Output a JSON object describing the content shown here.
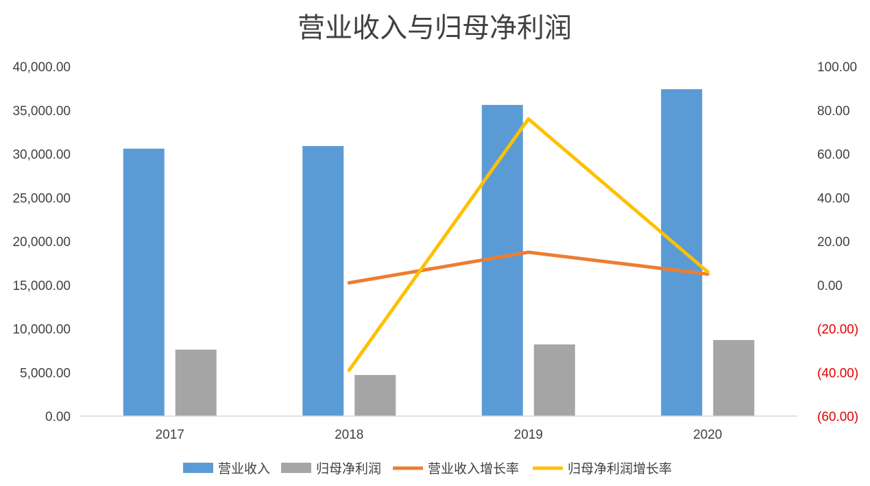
{
  "chart_data": {
    "type": "bar",
    "title": "营业收入与归母净利润",
    "categories": [
      "2017",
      "2018",
      "2019",
      "2020"
    ],
    "series": [
      {
        "name": "营业收入",
        "type": "bar",
        "axis": "left",
        "color": "#5b9bd5",
        "values": [
          30600,
          30900,
          35600,
          37400
        ]
      },
      {
        "name": "归母净利润",
        "type": "bar",
        "axis": "left",
        "color": "#a5a5a5",
        "values": [
          7600,
          4700,
          8200,
          8700
        ]
      },
      {
        "name": "营业收入增长率",
        "type": "line",
        "axis": "right",
        "color": "#ed7d31",
        "values": [
          null,
          1.0,
          15.0,
          5.0
        ]
      },
      {
        "name": "归母净利润增长率",
        "type": "line",
        "axis": "right",
        "color": "#ffc000",
        "values": [
          null,
          -39.0,
          76.0,
          6.0
        ]
      }
    ],
    "y_left": {
      "ylim": [
        0,
        40000
      ],
      "ticks": [
        "0.00",
        "5,000.00",
        "10,000.00",
        "15,000.00",
        "20,000.00",
        "25,000.00",
        "30,000.00",
        "35,000.00",
        "40,000.00"
      ],
      "tick_values": [
        0,
        5000,
        10000,
        15000,
        20000,
        25000,
        30000,
        35000,
        40000
      ]
    },
    "y_right": {
      "ylim": [
        -60,
        100
      ],
      "ticks": [
        "(60.00)",
        "(40.00)",
        "(20.00)",
        "0.00",
        "20.00",
        "40.00",
        "60.00",
        "80.00",
        "100.00"
      ],
      "tick_values": [
        -60,
        -40,
        -20,
        0,
        20,
        40,
        60,
        80,
        100
      ],
      "negative_color": "#e00000"
    },
    "legend": "bottom",
    "grid": false
  }
}
